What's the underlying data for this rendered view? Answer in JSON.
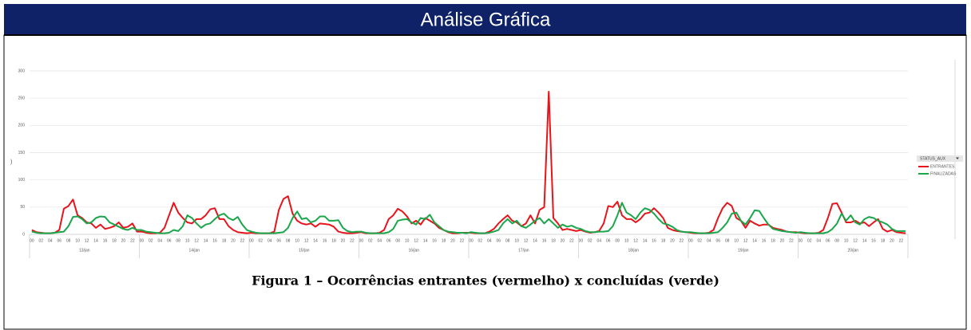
{
  "header": {
    "title": "Análise Gráfica"
  },
  "chart_data": {
    "type": "line",
    "ylabel": ")",
    "categories": [
      "00",
      null,
      "02",
      null,
      "04",
      null,
      "06",
      null,
      "08",
      null,
      "10",
      null,
      "12",
      null,
      "14",
      null,
      "16",
      null,
      "18",
      null,
      "20",
      null,
      "22",
      null,
      "00",
      null,
      "02",
      null,
      "04",
      null,
      "06",
      null,
      "08",
      null,
      "10",
      null,
      "12",
      null,
      "14",
      null,
      "16",
      null,
      "18",
      null,
      "20",
      null,
      "22",
      null,
      "00",
      null,
      "02",
      null,
      "04",
      null,
      "06",
      null,
      "08",
      null,
      "10",
      null,
      "12",
      null,
      "14",
      null,
      "16",
      null,
      "18",
      null,
      "20",
      null,
      "22",
      null,
      "00",
      null,
      "02",
      null,
      "04",
      null,
      "06",
      null,
      "08",
      null,
      "10",
      null,
      "12",
      null,
      "14",
      null,
      "16",
      null,
      "18",
      null,
      "20",
      null,
      "22",
      null,
      "00",
      null,
      "02",
      null,
      "04",
      null,
      "06",
      null,
      "08",
      null,
      "10",
      null,
      "12",
      null,
      "14",
      null,
      "16",
      null,
      "18",
      null,
      "20",
      null,
      "22",
      null,
      "00",
      null,
      "02",
      null,
      "04",
      null,
      "06",
      null,
      "08",
      null,
      "10",
      null,
      "12",
      null,
      "14",
      null,
      "16",
      null,
      "18",
      null,
      "20",
      null,
      "22",
      null,
      "00",
      null,
      "02",
      null,
      "04",
      null,
      "06",
      null,
      "08",
      null,
      "10",
      null,
      "12",
      null,
      "14",
      null,
      "16",
      null,
      "18",
      null,
      "20",
      null,
      "22",
      null,
      "00",
      null,
      "02",
      null,
      "04",
      null,
      "06",
      null,
      "08",
      null,
      "10",
      null,
      "12",
      null,
      "14",
      null,
      "16",
      null,
      "18",
      null,
      "20",
      null,
      "22",
      null
    ],
    "groups": [
      "13/jan",
      "14/jan",
      "15/jan",
      "16/jan",
      "17/jan",
      "18/jan",
      "19/jan",
      "20/jan"
    ],
    "series": [
      {
        "name": "ENTRANTES",
        "color": "#e8141b",
        "values": [
          8,
          4,
          3,
          2,
          2,
          3,
          8,
          47,
          52,
          64,
          35,
          30,
          22,
          20,
          12,
          18,
          10,
          12,
          15,
          22,
          12,
          14,
          20,
          5,
          5,
          3,
          2,
          2,
          3,
          12,
          35,
          58,
          40,
          30,
          22,
          20,
          28,
          28,
          35,
          46,
          48,
          28,
          28,
          15,
          8,
          4,
          3,
          2,
          3,
          2,
          2,
          2,
          2,
          5,
          45,
          65,
          70,
          38,
          25,
          20,
          18,
          20,
          14,
          20,
          19,
          18,
          14,
          5,
          3,
          2,
          2,
          3,
          4,
          2,
          2,
          2,
          3,
          8,
          28,
          35,
          47,
          42,
          33,
          20,
          25,
          18,
          30,
          25,
          20,
          12,
          8,
          4,
          2,
          2,
          3,
          3,
          3,
          2,
          2,
          2,
          5,
          10,
          20,
          28,
          35,
          25,
          22,
          15,
          20,
          35,
          20,
          45,
          50,
          262,
          30,
          20,
          8,
          10,
          8,
          6,
          8,
          5,
          3,
          4,
          6,
          20,
          52,
          50,
          60,
          35,
          28,
          28,
          22,
          28,
          38,
          40,
          48,
          40,
          30,
          12,
          8,
          6,
          5,
          4,
          3,
          2,
          2,
          2,
          3,
          8,
          30,
          48,
          58,
          52,
          30,
          25,
          12,
          25,
          20,
          16,
          18,
          18,
          12,
          10,
          8,
          5,
          4,
          4,
          3,
          2,
          2,
          2,
          3,
          8,
          30,
          56,
          57,
          40,
          22,
          22,
          25,
          20,
          22,
          15,
          22,
          28,
          10,
          5,
          8,
          4,
          3,
          2
        ]
      },
      {
        "name": "FINALIZADAS",
        "color": "#1aa64a",
        "values": [
          5,
          3,
          2,
          2,
          2,
          3,
          4,
          5,
          15,
          32,
          33,
          28,
          20,
          22,
          30,
          33,
          32,
          22,
          18,
          14,
          10,
          8,
          12,
          8,
          8,
          5,
          4,
          3,
          2,
          2,
          3,
          8,
          6,
          15,
          35,
          30,
          20,
          12,
          18,
          20,
          28,
          35,
          38,
          30,
          26,
          32,
          18,
          8,
          5,
          3,
          2,
          2,
          2,
          2,
          3,
          4,
          12,
          30,
          42,
          28,
          30,
          22,
          25,
          33,
          33,
          25,
          25,
          26,
          12,
          6,
          4,
          5,
          5,
          3,
          2,
          2,
          2,
          2,
          4,
          10,
          25,
          27,
          28,
          22,
          18,
          30,
          28,
          36,
          22,
          15,
          8,
          5,
          4,
          3,
          3,
          2,
          4,
          3,
          2,
          2,
          3,
          5,
          8,
          20,
          28,
          20,
          25,
          15,
          12,
          18,
          25,
          30,
          20,
          28,
          20,
          12,
          18,
          14,
          16,
          12,
          10,
          6,
          4,
          4,
          5,
          5,
          6,
          15,
          35,
          58,
          40,
          35,
          28,
          40,
          48,
          45,
          38,
          28,
          20,
          18,
          14,
          8,
          5,
          4,
          4,
          3,
          2,
          2,
          2,
          3,
          4,
          12,
          22,
          38,
          40,
          25,
          18,
          30,
          44,
          43,
          30,
          18,
          10,
          8,
          6,
          5,
          4,
          3,
          4,
          3,
          2,
          2,
          2,
          2,
          4,
          10,
          20,
          38,
          25,
          35,
          22,
          18,
          28,
          32,
          30,
          25,
          22,
          18,
          10,
          6,
          6,
          6
        ]
      }
    ],
    "legend_title": "STATUS_AUX",
    "ylim": [
      0,
      300
    ],
    "yticks": [
      0,
      50,
      100,
      150,
      200,
      250,
      300
    ],
    "grid": true
  },
  "caption": "Figura 1 – Ocorrências entrantes (vermelho) x concluídas (verde)"
}
